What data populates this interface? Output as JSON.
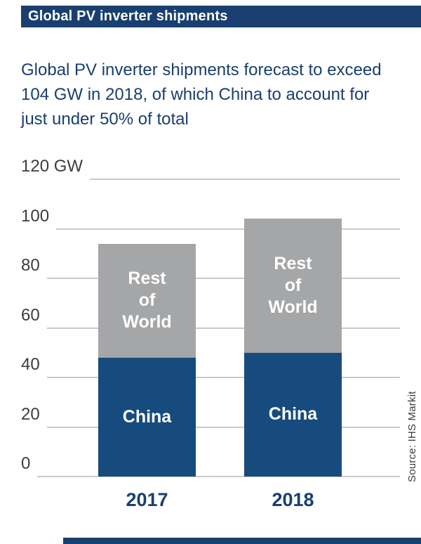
{
  "header": {
    "title": "Global PV inverter shipments"
  },
  "subtitle": "Global PV inverter shipments forecast to exceed\n104 GW in 2018, of which China to account for\njust under 50% of total",
  "source": "Source: IHS Markit",
  "colors": {
    "navy": "#193f70",
    "china_bar": "#174b7d",
    "rest_of_world_bar": "#a5a6a8",
    "gridline": "#c9cacc",
    "axis_text": "#3d3d3d"
  },
  "chart_data": {
    "type": "bar",
    "stacked": true,
    "title": "Global PV inverter shipments",
    "categories": [
      "2017",
      "2018"
    ],
    "series": [
      {
        "name": "China",
        "label": "China",
        "color": "#174b7d",
        "values": [
          48,
          50
        ]
      },
      {
        "name": "Rest of World",
        "label": "Rest\nof\nWorld",
        "color": "#a5a6a8",
        "values": [
          46,
          54
        ]
      }
    ],
    "totals": [
      94,
      104
    ],
    "unit": "GW",
    "ylim": [
      0,
      120
    ],
    "yticks": [
      0,
      20,
      40,
      60,
      80,
      100,
      120
    ],
    "ytick_labels": [
      "0",
      "20",
      "40",
      "60",
      "80",
      "100",
      "120 GW"
    ],
    "grid": true,
    "legend_position": "inside-bars",
    "source": "Source: IHS Markit"
  }
}
